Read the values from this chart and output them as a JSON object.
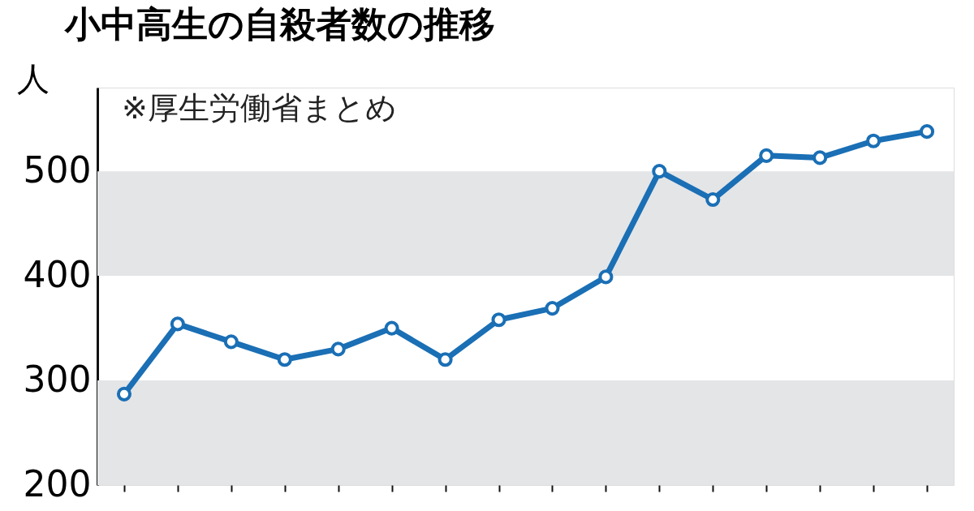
{
  "chart_data": {
    "type": "line",
    "title": "小中高生の自殺者数の推移",
    "ylabel": "人",
    "annotations": [
      "※厚生労働省まとめ"
    ],
    "categories": [
      null,
      null,
      null,
      null,
      null,
      null,
      null,
      null,
      null,
      null,
      null,
      null,
      null,
      null,
      null,
      null
    ],
    "series": [
      {
        "color": "#1a6fb5",
        "values": [
          287,
          354,
          337,
          320,
          330,
          350,
          320,
          358,
          369,
          399,
          500,
          473,
          515,
          513,
          529,
          538
        ]
      }
    ],
    "ylim": [
      200,
      580
    ],
    "yticks": [
      200,
      300,
      400,
      500
    ],
    "grid": false,
    "marker": "circle",
    "line_style": "solid",
    "bands": [
      {
        "axis": "y",
        "from": 200,
        "to": 300,
        "color": "#e4e5e7"
      },
      {
        "axis": "y",
        "from": 400,
        "to": 500,
        "color": "#e4e5e7"
      }
    ]
  }
}
